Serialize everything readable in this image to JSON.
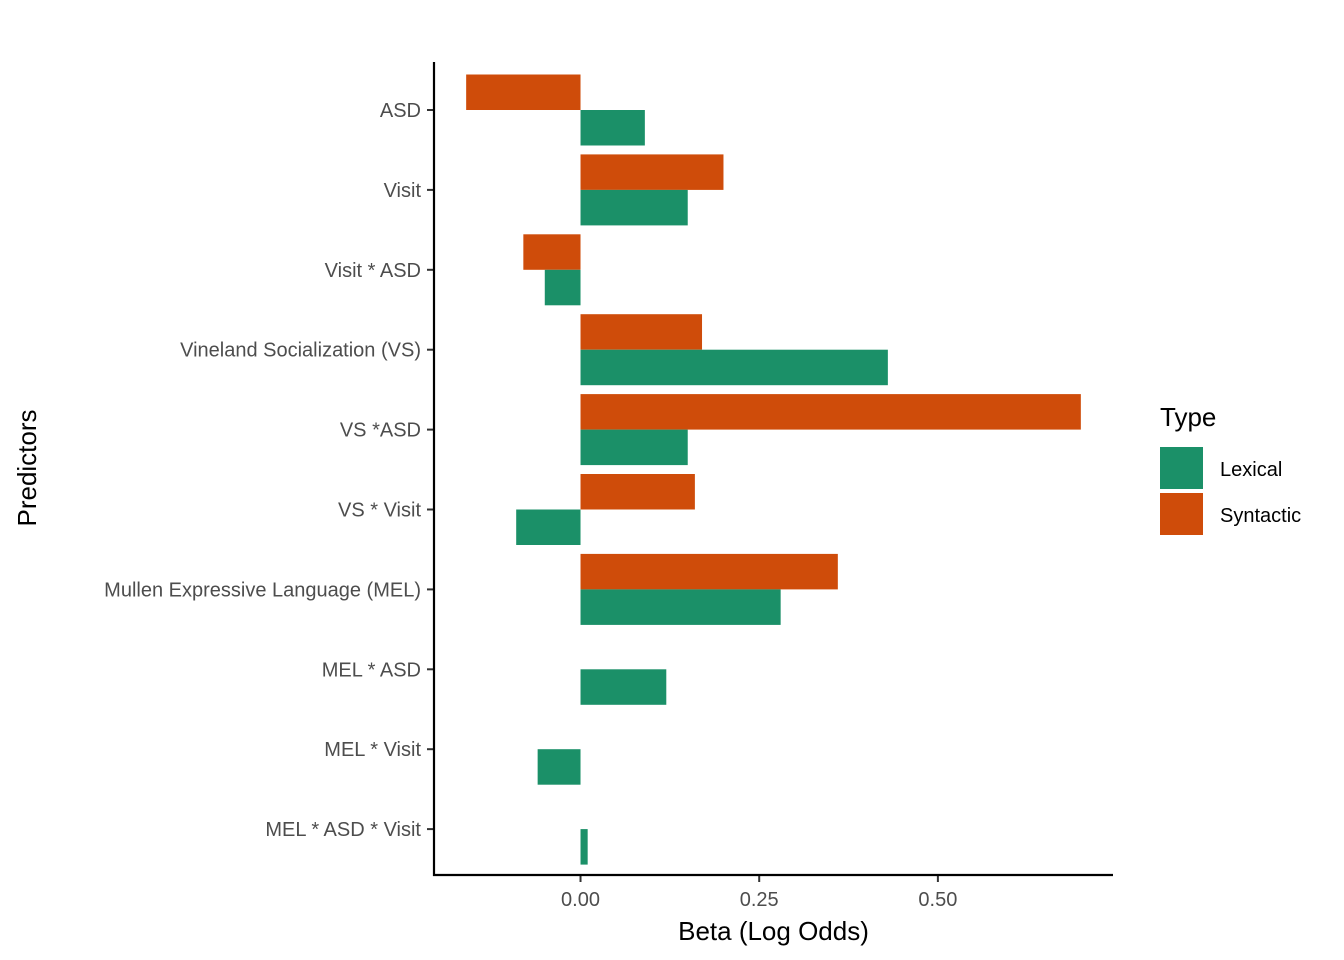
{
  "chart_data": {
    "type": "bar",
    "orientation": "horizontal",
    "title": "",
    "xlabel": "Beta (Log Odds)",
    "ylabel": "Predictors",
    "xlim": [
      -0.205,
      0.745
    ],
    "xticks": [
      0.0,
      0.25,
      0.5
    ],
    "xtick_labels": [
      "0.00",
      "0.25",
      "0.50"
    ],
    "grid": false,
    "legend_position": "right",
    "legend_title": "Type",
    "categories": [
      "ASD",
      "Visit ",
      "Visit * ASD",
      "Vineland Socialization (VS)",
      "VS *ASD",
      "VS * Visit",
      "Mullen Expressive Language (MEL)",
      "MEL * ASD",
      "MEL * Visit",
      "MEL * ASD * Visit"
    ],
    "series": [
      {
        "name": "Lexical",
        "color": "#1b9068",
        "values": [
          0.09,
          0.15,
          -0.05,
          0.43,
          0.15,
          -0.09,
          0.28,
          0.12,
          -0.06,
          0.01
        ]
      },
      {
        "name": "Syntactic",
        "color": "#cf4c0a",
        "values": [
          -0.16,
          0.2,
          -0.08,
          0.17,
          0.7,
          0.16,
          0.36,
          null,
          null,
          null
        ]
      }
    ]
  }
}
